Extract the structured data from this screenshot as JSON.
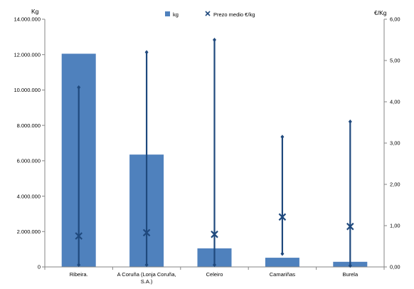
{
  "chart_data": {
    "type": "bar",
    "categories": [
      "Ribeira.",
      "A Coruña (Lonja Coruña, S.A.)",
      "Celeiro",
      "Camariñas",
      "Burela"
    ],
    "category_lines": [
      [
        "Ribeira."
      ],
      [
        "A Coruña (Lonja Coruña,",
        "S.A.)"
      ],
      [
        "Celeiro"
      ],
      [
        "Camariñas"
      ],
      [
        "Burela"
      ]
    ],
    "series": [
      {
        "name": "kg",
        "axis": "left",
        "values": [
          12050000,
          6350000,
          1050000,
          520000,
          290000
        ]
      },
      {
        "name": "Prezo medio €/kg",
        "axis": "right",
        "mean": [
          0.75,
          0.83,
          0.79,
          1.21,
          0.98
        ],
        "high": [
          4.35,
          5.2,
          5.5,
          3.15,
          3.52
        ],
        "low": [
          0.05,
          0.05,
          0.05,
          0.32,
          0.03
        ]
      }
    ],
    "y_left": {
      "label": "Kg",
      "min": 0,
      "max": 14000000,
      "ticks": [
        "0",
        "2.000.000",
        "4.000.000",
        "6.000.000",
        "8.000.000",
        "10.000.000",
        "12.000.000",
        "14.000.000"
      ]
    },
    "y_right": {
      "label": "€/Kg",
      "min": 0,
      "max": 6,
      "ticks": [
        "0,00",
        "1,00",
        "2,00",
        "3,00",
        "4,00",
        "5,00",
        "6,00"
      ]
    },
    "legend_position": "top",
    "grid": false,
    "colors": {
      "bar": "#4f81bd",
      "line": "#1f497d",
      "axis": "#868686"
    }
  }
}
